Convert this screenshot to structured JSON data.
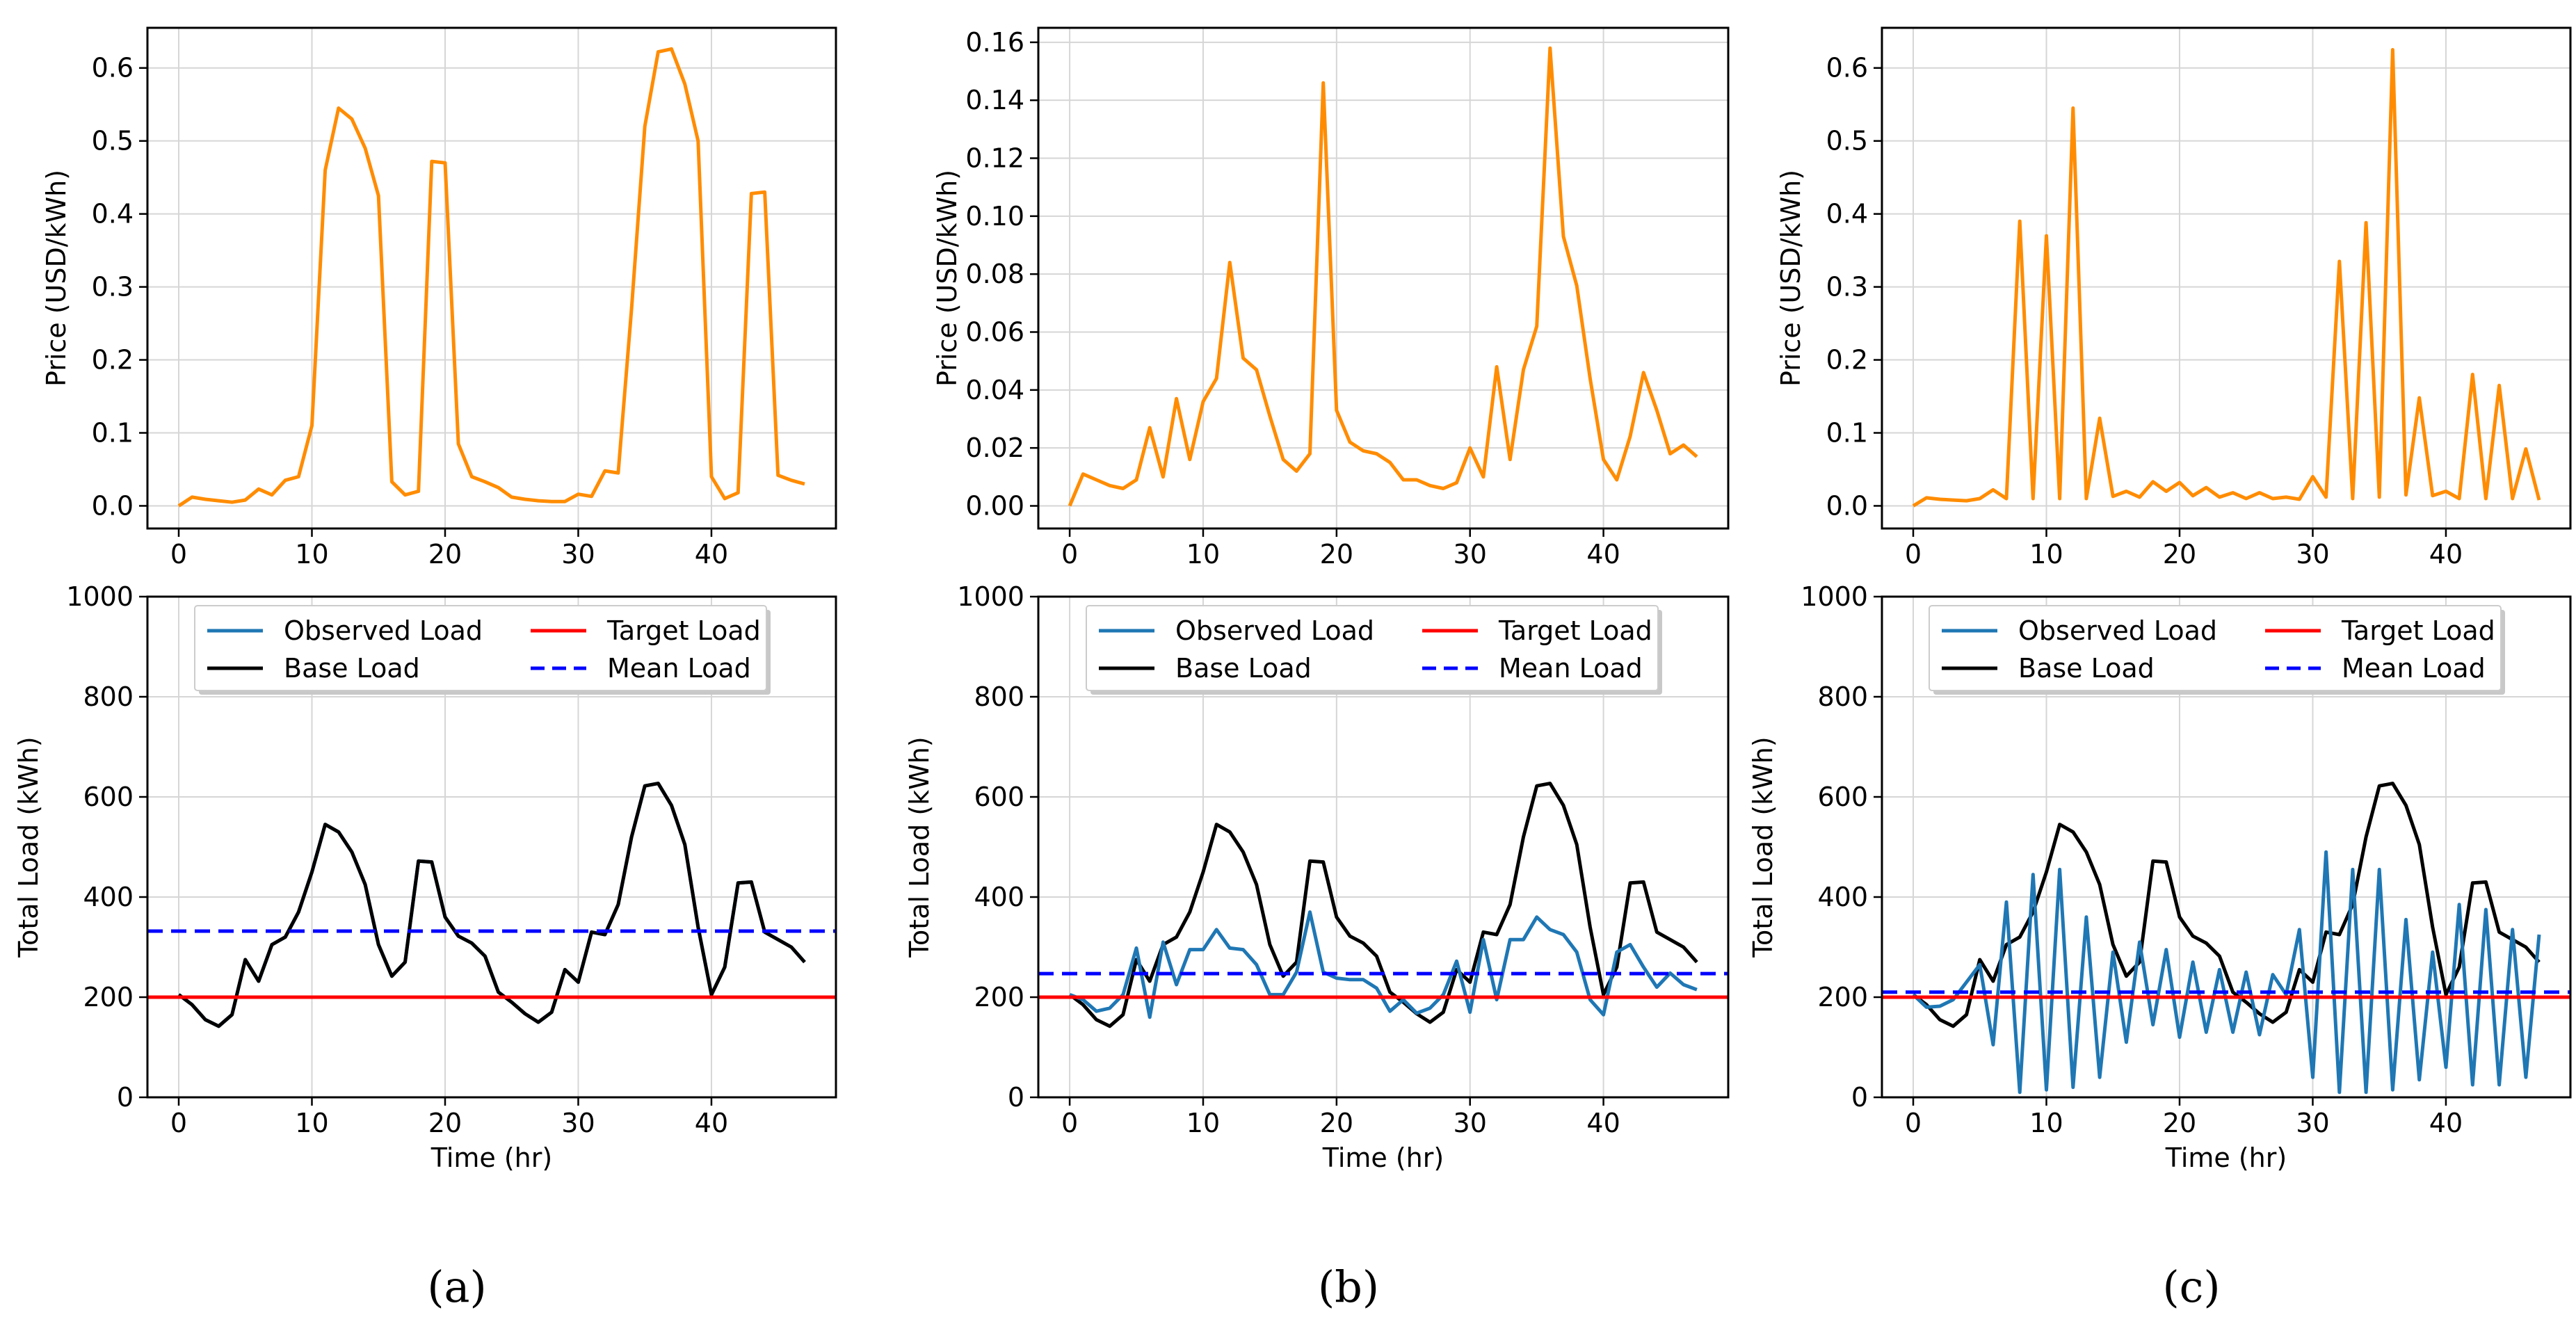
{
  "chart_data": [
    {
      "panel": "a",
      "row": "top",
      "type": "line",
      "xlabel": "",
      "ylabel": "Price (USD/kWh)",
      "xlim": [
        -2.35,
        49.35
      ],
      "ylim": [
        -0.031,
        0.655
      ],
      "xticks": [
        0,
        10,
        20,
        30,
        40
      ],
      "yticks": [
        0.0,
        0.1,
        0.2,
        0.3,
        0.4,
        0.5,
        0.6
      ],
      "ytick_labels": [
        "0.0",
        "0.1",
        "0.2",
        "0.3",
        "0.4",
        "0.5",
        "0.6"
      ],
      "grid": true,
      "series": [
        {
          "color": "#ff8c00",
          "style": "solid",
          "x_start": 0,
          "values": [
            0.0,
            0.012,
            0.009,
            0.007,
            0.005,
            0.008,
            0.023,
            0.015,
            0.035,
            0.04,
            0.11,
            0.46,
            0.545,
            0.53,
            0.49,
            0.425,
            0.033,
            0.015,
            0.02,
            0.472,
            0.47,
            0.085,
            0.04,
            0.033,
            0.025,
            0.012,
            0.009,
            0.007,
            0.006,
            0.006,
            0.016,
            0.013,
            0.048,
            0.045,
            0.27,
            0.52,
            0.622,
            0.626,
            0.578,
            0.5,
            0.04,
            0.01,
            0.018,
            0.428,
            0.43,
            0.042,
            0.035,
            0.03
          ]
        }
      ]
    },
    {
      "panel": "b",
      "row": "top",
      "type": "line",
      "xlabel": "",
      "ylabel": "Price (USD/kWh)",
      "xlim": [
        -2.35,
        49.35
      ],
      "ylim": [
        -0.0078,
        0.165
      ],
      "xticks": [
        0,
        10,
        20,
        30,
        40
      ],
      "yticks": [
        0.0,
        0.02,
        0.04,
        0.06,
        0.08,
        0.1,
        0.12,
        0.14,
        0.16
      ],
      "ytick_labels": [
        "0.00",
        "0.02",
        "0.04",
        "0.06",
        "0.08",
        "0.10",
        "0.12",
        "0.14",
        "0.16"
      ],
      "grid": true,
      "series": [
        {
          "color": "#ff8c00",
          "style": "solid",
          "x_start": 0,
          "values": [
            0.0,
            0.011,
            0.009,
            0.007,
            0.006,
            0.009,
            0.027,
            0.01,
            0.037,
            0.016,
            0.036,
            0.044,
            0.084,
            0.051,
            0.047,
            0.031,
            0.016,
            0.012,
            0.018,
            0.146,
            0.033,
            0.022,
            0.019,
            0.018,
            0.015,
            0.009,
            0.009,
            0.007,
            0.006,
            0.008,
            0.02,
            0.01,
            0.048,
            0.016,
            0.047,
            0.062,
            0.158,
            0.093,
            0.076,
            0.044,
            0.016,
            0.009,
            0.024,
            0.046,
            0.033,
            0.018,
            0.021,
            0.017
          ]
        }
      ]
    },
    {
      "panel": "c",
      "row": "top",
      "type": "line",
      "xlabel": "",
      "ylabel": "Price (USD/kWh)",
      "xlim": [
        -2.35,
        49.35
      ],
      "ylim": [
        -0.031,
        0.655
      ],
      "xticks": [
        0,
        10,
        20,
        30,
        40
      ],
      "yticks": [
        0.0,
        0.1,
        0.2,
        0.3,
        0.4,
        0.5,
        0.6
      ],
      "ytick_labels": [
        "0.0",
        "0.1",
        "0.2",
        "0.3",
        "0.4",
        "0.5",
        "0.6"
      ],
      "grid": true,
      "series": [
        {
          "color": "#ff8c00",
          "style": "solid",
          "x_start": 0,
          "values": [
            0.0,
            0.011,
            0.009,
            0.008,
            0.007,
            0.01,
            0.022,
            0.01,
            0.39,
            0.01,
            0.37,
            0.01,
            0.545,
            0.01,
            0.12,
            0.013,
            0.02,
            0.012,
            0.033,
            0.02,
            0.032,
            0.014,
            0.025,
            0.012,
            0.018,
            0.01,
            0.018,
            0.01,
            0.012,
            0.009,
            0.04,
            0.012,
            0.335,
            0.01,
            0.388,
            0.012,
            0.625,
            0.015,
            0.148,
            0.014,
            0.02,
            0.01,
            0.18,
            0.01,
            0.165,
            0.01,
            0.078,
            0.008
          ]
        }
      ]
    },
    {
      "panel": "a",
      "row": "bottom",
      "type": "line",
      "xlabel": "Time (hr)",
      "ylabel": "Total Load (kWh)",
      "xlim": [
        -2.35,
        49.35
      ],
      "ylim": [
        0,
        1000
      ],
      "xticks": [
        0,
        10,
        20,
        30,
        40
      ],
      "yticks": [
        0,
        200,
        400,
        600,
        800,
        1000
      ],
      "ytick_labels": [
        "0",
        "200",
        "400",
        "600",
        "800",
        "1000"
      ],
      "grid": true,
      "legend": {
        "placement": "top-center",
        "columns": 2,
        "entries": [
          {
            "label": "Observed Load",
            "color": "#1f77b4",
            "style": "solid"
          },
          {
            "label": "Target Load",
            "color": "#ff0000",
            "style": "solid"
          },
          {
            "label": "Base Load",
            "color": "#000000",
            "style": "solid"
          },
          {
            "label": "Mean Load",
            "color": "#0000ff",
            "style": "dashed"
          }
        ]
      },
      "series": [
        {
          "name": "Observed Load",
          "color": "#1f77b4",
          "style": "solid",
          "x_start": 0,
          "values": [
            205,
            185,
            155,
            142,
            165,
            275,
            232,
            305,
            320,
            370,
            450,
            545,
            530,
            490,
            425,
            305,
            242,
            270,
            472,
            470,
            360,
            322,
            308,
            282,
            210,
            190,
            167,
            150,
            170,
            255,
            230,
            330,
            325,
            385,
            520,
            622,
            627,
            583,
            505,
            340,
            205,
            260,
            428,
            430,
            330,
            315,
            300,
            270
          ]
        },
        {
          "name": "Base Load",
          "color": "#000000",
          "style": "solid",
          "x_start": 0,
          "values": [
            205,
            185,
            155,
            142,
            165,
            275,
            232,
            305,
            320,
            370,
            450,
            545,
            530,
            490,
            425,
            305,
            242,
            270,
            472,
            470,
            360,
            322,
            308,
            282,
            210,
            190,
            167,
            150,
            170,
            255,
            230,
            330,
            325,
            385,
            520,
            622,
            627,
            583,
            505,
            340,
            205,
            260,
            428,
            430,
            330,
            315,
            300,
            270
          ]
        },
        {
          "name": "Target Load",
          "color": "#ff0000",
          "style": "solid",
          "hline": 200
        },
        {
          "name": "Mean Load",
          "color": "#0000ff",
          "style": "dashed",
          "hline": 332
        }
      ]
    },
    {
      "panel": "b",
      "row": "bottom",
      "type": "line",
      "xlabel": "Time (hr)",
      "ylabel": "Total Load (kWh)",
      "xlim": [
        -2.35,
        49.35
      ],
      "ylim": [
        0,
        1000
      ],
      "xticks": [
        0,
        10,
        20,
        30,
        40
      ],
      "yticks": [
        0,
        200,
        400,
        600,
        800,
        1000
      ],
      "ytick_labels": [
        "0",
        "200",
        "400",
        "600",
        "800",
        "1000"
      ],
      "grid": true,
      "legend": {
        "placement": "top-center",
        "columns": 2,
        "entries": [
          {
            "label": "Observed Load",
            "color": "#1f77b4",
            "style": "solid"
          },
          {
            "label": "Target Load",
            "color": "#ff0000",
            "style": "solid"
          },
          {
            "label": "Base Load",
            "color": "#000000",
            "style": "solid"
          },
          {
            "label": "Mean Load",
            "color": "#0000ff",
            "style": "dashed"
          }
        ]
      },
      "series": [
        {
          "name": "Base Load",
          "color": "#000000",
          "style": "solid",
          "x_start": 0,
          "values": [
            205,
            185,
            155,
            142,
            165,
            275,
            232,
            305,
            320,
            370,
            450,
            545,
            530,
            490,
            425,
            305,
            242,
            270,
            472,
            470,
            360,
            322,
            308,
            282,
            210,
            190,
            167,
            150,
            170,
            255,
            230,
            330,
            325,
            385,
            520,
            622,
            627,
            583,
            505,
            340,
            205,
            260,
            428,
            430,
            330,
            315,
            300,
            270
          ]
        },
        {
          "name": "Observed Load",
          "color": "#1f77b4",
          "style": "solid",
          "x_start": 0,
          "values": [
            205,
            195,
            172,
            178,
            205,
            298,
            160,
            310,
            225,
            295,
            295,
            335,
            298,
            295,
            265,
            205,
            205,
            250,
            370,
            250,
            238,
            235,
            235,
            218,
            172,
            195,
            168,
            178,
            205,
            272,
            170,
            315,
            195,
            315,
            315,
            360,
            335,
            325,
            290,
            195,
            165,
            290,
            305,
            260,
            220,
            248,
            225,
            215
          ]
        },
        {
          "name": "Target Load",
          "color": "#ff0000",
          "style": "solid",
          "hline": 200
        },
        {
          "name": "Mean Load",
          "color": "#0000ff",
          "style": "dashed",
          "hline": 247
        }
      ]
    },
    {
      "panel": "c",
      "row": "bottom",
      "type": "line",
      "xlabel": "Time (hr)",
      "ylabel": "Total Load (kWh)",
      "xlim": [
        -2.35,
        49.35
      ],
      "ylim": [
        0,
        1000
      ],
      "xticks": [
        0,
        10,
        20,
        30,
        40
      ],
      "yticks": [
        0,
        200,
        400,
        600,
        800,
        1000
      ],
      "ytick_labels": [
        "0",
        "200",
        "400",
        "600",
        "800",
        "1000"
      ],
      "grid": true,
      "legend": {
        "placement": "top-center",
        "columns": 2,
        "entries": [
          {
            "label": "Observed Load",
            "color": "#1f77b4",
            "style": "solid"
          },
          {
            "label": "Target Load",
            "color": "#ff0000",
            "style": "solid"
          },
          {
            "label": "Base Load",
            "color": "#000000",
            "style": "solid"
          },
          {
            "label": "Mean Load",
            "color": "#0000ff",
            "style": "dashed"
          }
        ]
      },
      "series": [
        {
          "name": "Base Load",
          "color": "#000000",
          "style": "solid",
          "x_start": 0,
          "values": [
            205,
            185,
            155,
            142,
            165,
            275,
            232,
            305,
            320,
            370,
            450,
            545,
            530,
            490,
            425,
            305,
            242,
            270,
            472,
            470,
            360,
            322,
            308,
            282,
            210,
            190,
            167,
            150,
            170,
            255,
            230,
            330,
            325,
            385,
            520,
            622,
            627,
            583,
            505,
            340,
            205,
            260,
            428,
            430,
            330,
            315,
            300,
            270
          ]
        },
        {
          "name": "Observed Load",
          "color": "#1f77b4",
          "style": "solid",
          "x_start": 0,
          "values": [
            205,
            180,
            182,
            195,
            230,
            265,
            105,
            390,
            10,
            445,
            15,
            455,
            20,
            360,
            40,
            290,
            110,
            310,
            145,
            295,
            120,
            270,
            130,
            255,
            130,
            250,
            125,
            245,
            205,
            335,
            40,
            490,
            10,
            455,
            10,
            455,
            15,
            355,
            35,
            290,
            60,
            385,
            25,
            375,
            25,
            335,
            40,
            325
          ]
        },
        {
          "name": "Target Load",
          "color": "#ff0000",
          "style": "solid",
          "hline": 200
        },
        {
          "name": "Mean Load",
          "color": "#0000ff",
          "style": "dashed",
          "hline": 210
        }
      ]
    }
  ],
  "captions": [
    "(a)",
    "(b)",
    "(c)"
  ]
}
